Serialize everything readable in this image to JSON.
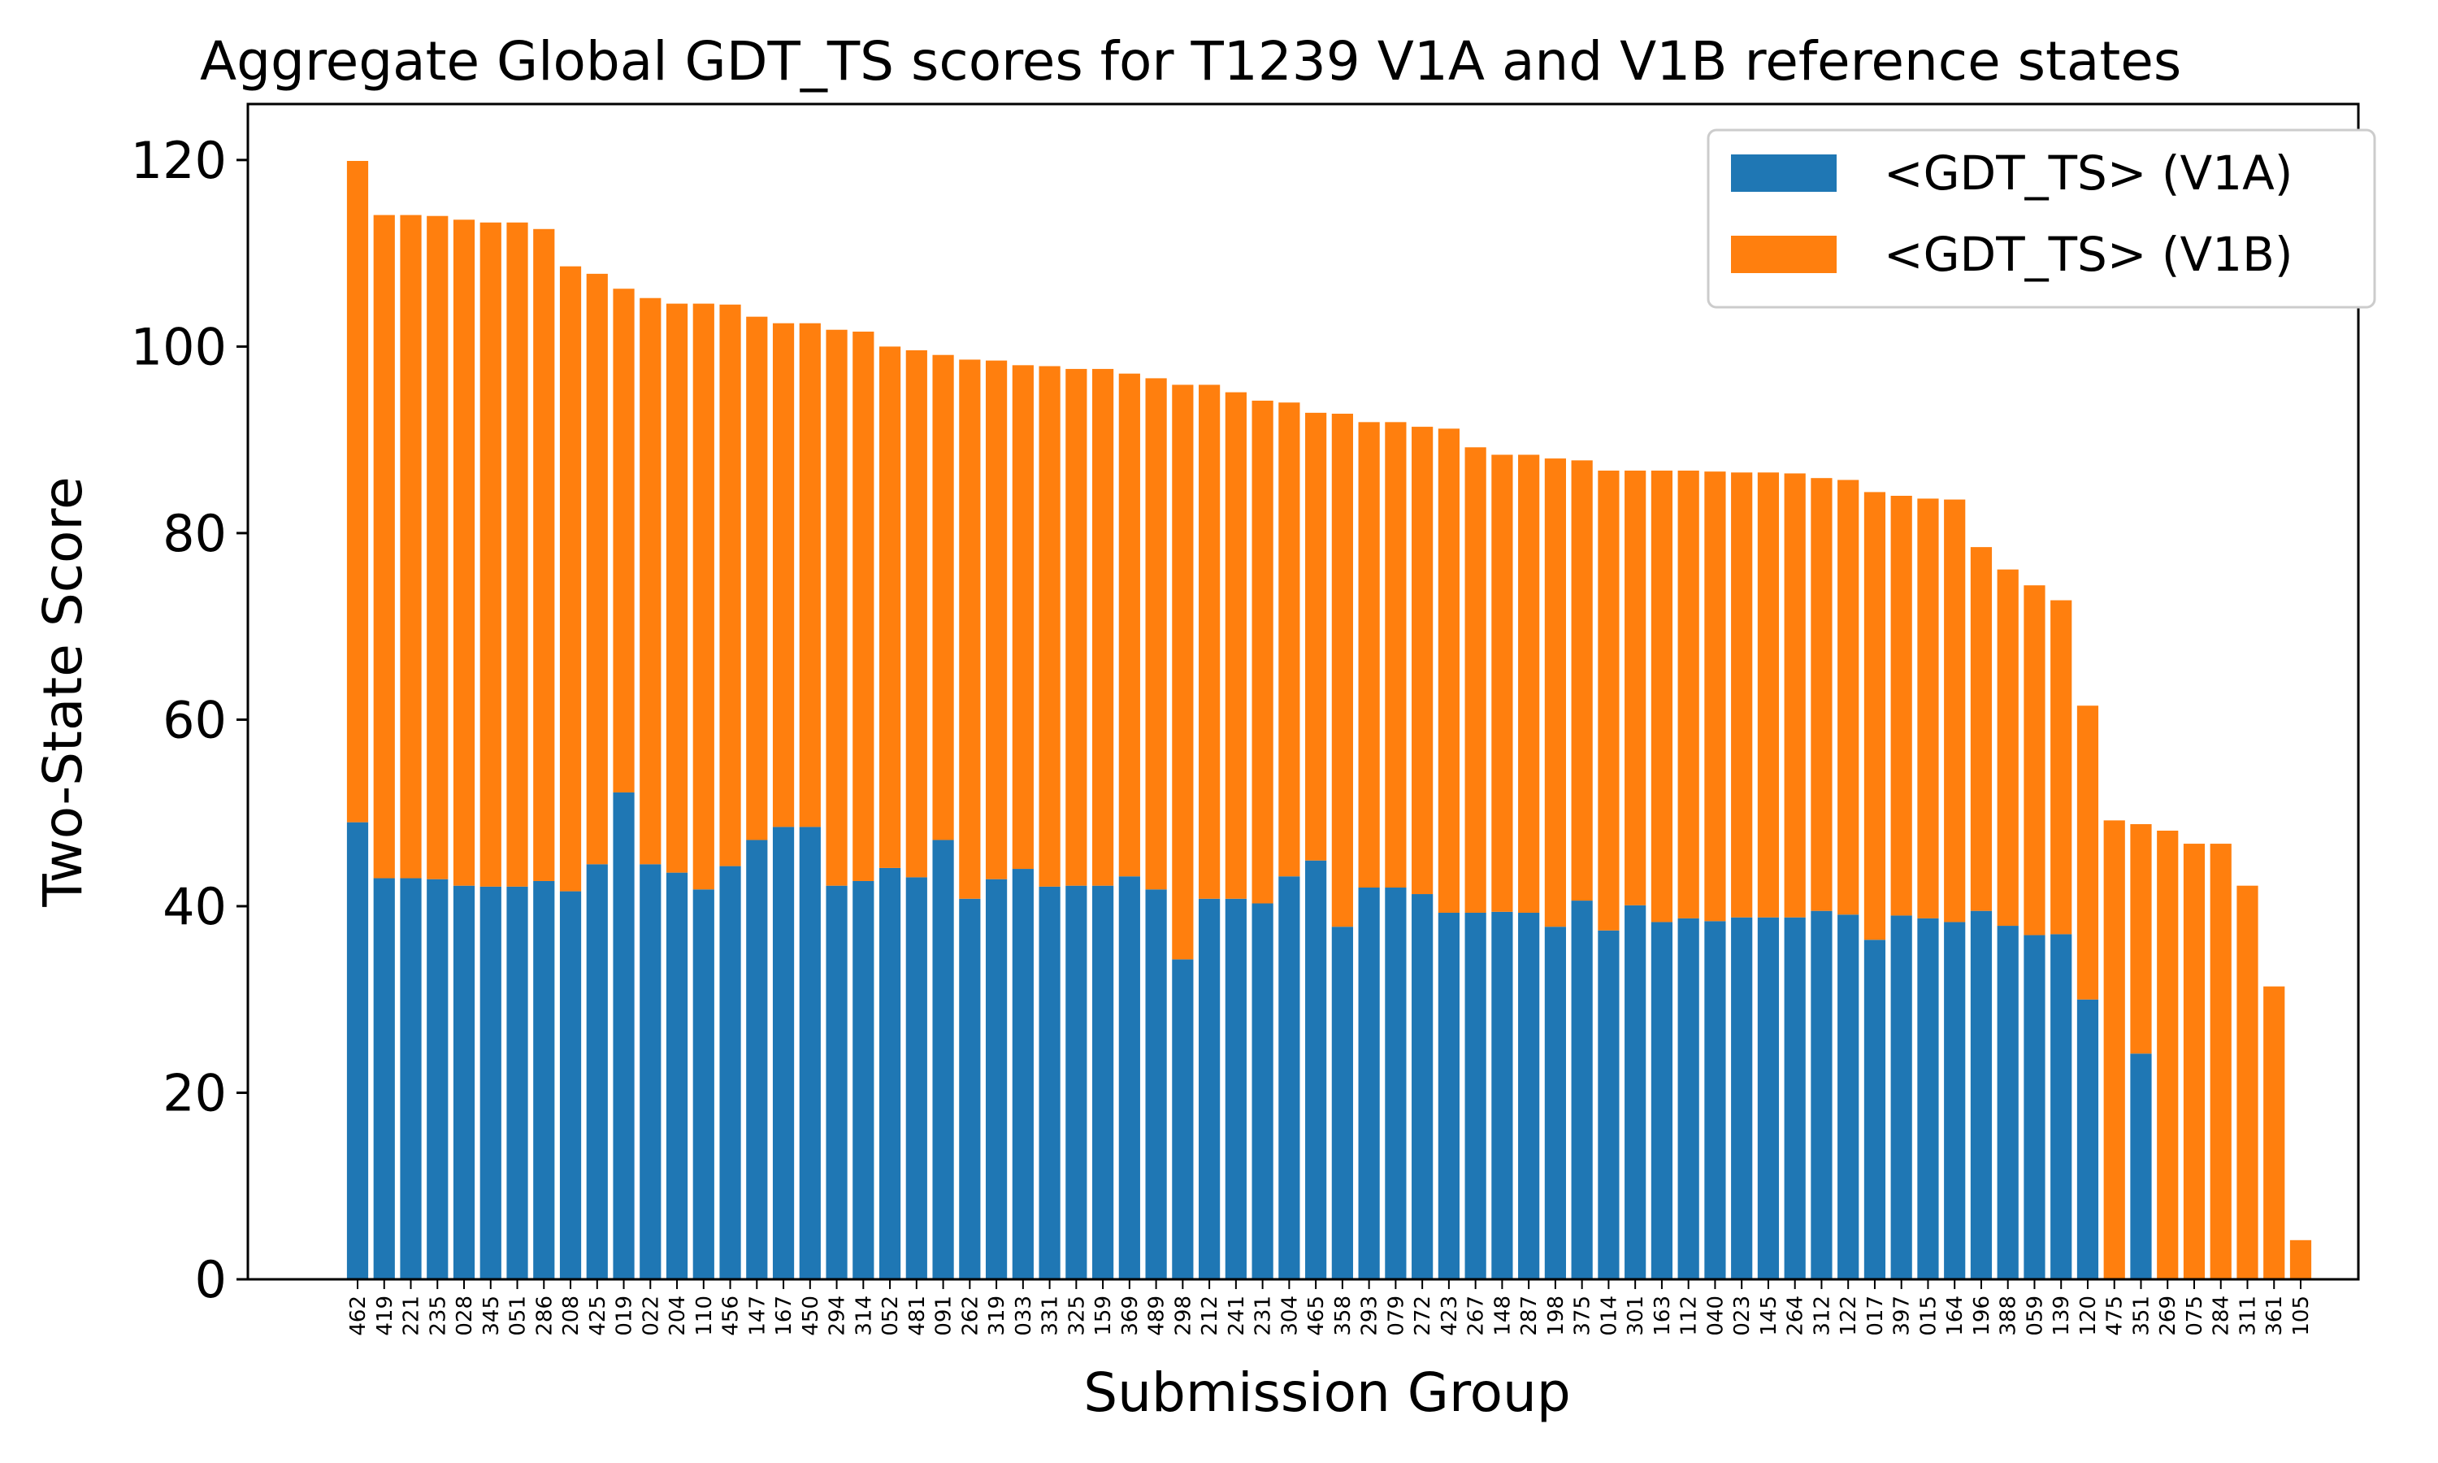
{
  "chart_data": {
    "type": "bar",
    "stacked": true,
    "title": "Aggregate Global GDT_TS scores for T1239 V1A and V1B reference states",
    "xlabel": "Submission Group",
    "ylabel": "Two-State Score",
    "ylim": [
      0,
      126
    ],
    "yticks": [
      0,
      20,
      40,
      60,
      80,
      100,
      120
    ],
    "grid": false,
    "legend_position": "top-right",
    "categories": [
      "462",
      "419",
      "221",
      "235",
      "028",
      "345",
      "051",
      "286",
      "208",
      "425",
      "019",
      "022",
      "204",
      "110",
      "456",
      "147",
      "167",
      "450",
      "294",
      "314",
      "052",
      "481",
      "091",
      "262",
      "319",
      "033",
      "331",
      "325",
      "159",
      "369",
      "489",
      "298",
      "212",
      "241",
      "231",
      "304",
      "465",
      "358",
      "293",
      "079",
      "272",
      "423",
      "267",
      "148",
      "287",
      "198",
      "375",
      "014",
      "301",
      "163",
      "112",
      "040",
      "023",
      "145",
      "264",
      "312",
      "122",
      "017",
      "397",
      "015",
      "164",
      "196",
      "388",
      "059",
      "139",
      "120",
      "475",
      "351",
      "269",
      "075",
      "284",
      "311",
      "361",
      "105"
    ],
    "series": [
      {
        "name": "<GDT_TS> (V1A)",
        "color": "#1f77b4",
        "values": [
          49.0,
          43.0,
          43.0,
          42.9,
          42.2,
          42.1,
          42.1,
          42.7,
          41.6,
          44.5,
          52.2,
          44.5,
          43.6,
          41.8,
          44.3,
          47.1,
          48.5,
          48.5,
          42.2,
          42.7,
          44.1,
          43.1,
          47.1,
          40.8,
          42.9,
          44.0,
          42.1,
          42.2,
          42.2,
          43.2,
          41.8,
          34.3,
          40.8,
          40.8,
          40.3,
          43.2,
          44.9,
          37.8,
          42.0,
          42.0,
          41.3,
          39.3,
          39.3,
          39.4,
          39.3,
          37.8,
          40.6,
          37.4,
          40.1,
          38.3,
          38.7,
          38.4,
          38.8,
          38.8,
          38.8,
          39.5,
          39.1,
          36.4,
          39.0,
          38.7,
          38.3,
          39.5,
          37.9,
          36.9,
          37.0,
          30.0,
          0,
          24.2,
          0,
          0,
          0,
          0,
          0,
          0
        ]
      },
      {
        "name": "<GDT_TS> (V1B)",
        "color": "#ff7f0e",
        "values": [
          70.9,
          71.1,
          71.1,
          71.1,
          71.4,
          71.2,
          71.2,
          69.9,
          67.0,
          63.3,
          54.0,
          60.7,
          61.0,
          62.8,
          60.2,
          56.1,
          54.0,
          54.0,
          59.6,
          58.9,
          55.9,
          56.5,
          52.0,
          57.8,
          55.6,
          54.0,
          55.8,
          55.4,
          55.4,
          53.9,
          54.8,
          61.6,
          55.1,
          54.3,
          53.9,
          50.8,
          48.0,
          55.0,
          49.9,
          49.9,
          50.1,
          51.9,
          49.9,
          49.0,
          49.1,
          50.2,
          47.2,
          49.3,
          46.6,
          48.4,
          48.0,
          48.2,
          47.7,
          47.7,
          47.6,
          46.4,
          46.6,
          48.0,
          45.0,
          45.0,
          45.3,
          39.0,
          38.2,
          37.5,
          35.8,
          31.5,
          49.2,
          24.6,
          48.1,
          46.7,
          46.7,
          42.2,
          31.4,
          4.2
        ]
      }
    ]
  }
}
